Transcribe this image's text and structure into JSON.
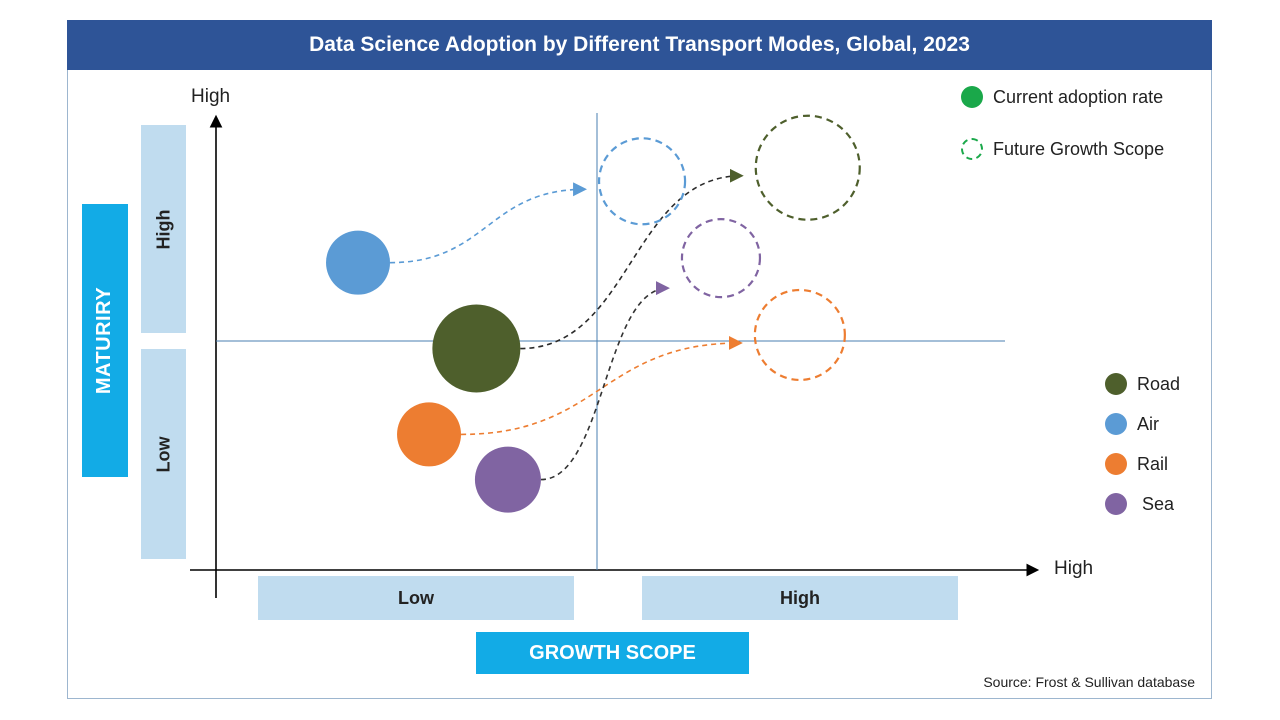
{
  "title": "Data Science Adoption by Different Transport Modes, Global, 2023",
  "axes": {
    "y_high_label": "High",
    "x_high_label": "High",
    "y_title": "MATURIRY",
    "x_title": "GROWTH SCOPE",
    "y_bands": [
      "High",
      "Low"
    ],
    "x_bands": [
      "Low",
      "High"
    ]
  },
  "legend_top": {
    "current": "Current adoption rate",
    "future": "Future Growth Scope",
    "current_color": "#1aa84a",
    "future_color": "#1aa84a"
  },
  "legend_modes": [
    {
      "name": "Road",
      "color": "#4e5f2c"
    },
    {
      "name": "Air",
      "color": "#5b9bd5"
    },
    {
      "name": "Rail",
      "color": "#ed7d31"
    },
    {
      "name": "Sea",
      "color": "#8064a2"
    }
  ],
  "source": "Source: Frost & Sullivan database",
  "chart_data": {
    "type": "scatter",
    "x_axis": "Growth Scope",
    "y_axis": "Maturity",
    "xlim": [
      0,
      10
    ],
    "ylim": [
      0,
      10
    ],
    "quadrant_divider": {
      "x": 4.7,
      "y": 5.2
    },
    "series": [
      {
        "name": "Road",
        "color": "#4e5f2c",
        "current": {
          "x": 3.3,
          "y": 4.9,
          "size": 44
        },
        "future": {
          "x": 7.5,
          "y": 8.9,
          "size": 52
        }
      },
      {
        "name": "Air",
        "color": "#5b9bd5",
        "current": {
          "x": 1.8,
          "y": 6.8,
          "size": 32
        },
        "future": {
          "x": 5.4,
          "y": 8.6,
          "size": 43
        }
      },
      {
        "name": "Rail",
        "color": "#ed7d31",
        "current": {
          "x": 2.7,
          "y": 3.0,
          "size": 32
        },
        "future": {
          "x": 7.4,
          "y": 5.2,
          "size": 45
        }
      },
      {
        "name": "Sea",
        "color": "#8064a2",
        "current": {
          "x": 3.7,
          "y": 2.0,
          "size": 33
        },
        "future": {
          "x": 6.4,
          "y": 6.9,
          "size": 39
        }
      }
    ]
  }
}
